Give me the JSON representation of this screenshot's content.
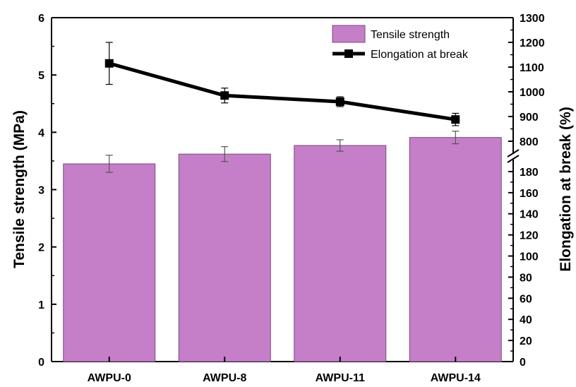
{
  "chart_data": {
    "type": "bar",
    "categories": [
      "AWPU-0",
      "AWPU-8",
      "AWPU-11",
      "AWPU-14"
    ],
    "series": [
      {
        "name": "Tensile strength",
        "kind": "bar",
        "axis": "left",
        "values": [
          3.45,
          3.62,
          3.77,
          3.91
        ],
        "errors": [
          0.15,
          0.13,
          0.1,
          0.11
        ]
      },
      {
        "name": "Elongation at break",
        "kind": "line",
        "axis": "right",
        "values": [
          1115,
          985,
          960,
          888
        ],
        "errors": [
          85,
          30,
          20,
          25
        ]
      }
    ],
    "ylabel": "Tensile strength (MPa)",
    "y2label": "Elongation at break (%)",
    "ylim": [
      0,
      6
    ],
    "yticks": [
      "0",
      "1",
      "2",
      "3",
      "4",
      "5",
      "6"
    ],
    "y2_lower_ticks": [
      "0",
      "20",
      "40",
      "60",
      "80",
      "100",
      "120",
      "140",
      "160",
      "180"
    ],
    "y2_upper_ticks": [
      "800",
      "900",
      "1000",
      "1100",
      "1200",
      "1300"
    ],
    "y2_break": [
      190,
      760
    ],
    "legend_position": "top-right",
    "colors": {
      "bar_fill": "#c47fc8",
      "bar_stroke": "#7a4a7e",
      "line": "#000000",
      "frame": "#000000"
    }
  }
}
